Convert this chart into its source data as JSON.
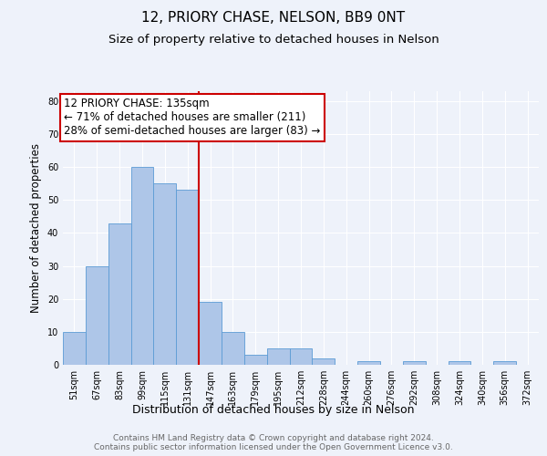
{
  "title": "12, PRIORY CHASE, NELSON, BB9 0NT",
  "subtitle": "Size of property relative to detached houses in Nelson",
  "xlabel": "Distribution of detached houses by size in Nelson",
  "ylabel": "Number of detached properties",
  "categories": [
    "51sqm",
    "67sqm",
    "83sqm",
    "99sqm",
    "115sqm",
    "131sqm",
    "147sqm",
    "163sqm",
    "179sqm",
    "195sqm",
    "212sqm",
    "228sqm",
    "244sqm",
    "260sqm",
    "276sqm",
    "292sqm",
    "308sqm",
    "324sqm",
    "340sqm",
    "356sqm",
    "372sqm"
  ],
  "values": [
    10,
    30,
    43,
    60,
    55,
    53,
    19,
    10,
    3,
    5,
    5,
    2,
    0,
    1,
    0,
    1,
    0,
    1,
    0,
    1,
    0
  ],
  "bar_color": "#aec6e8",
  "bar_edgecolor": "#5b9bd5",
  "bar_width": 1.0,
  "vline_x": 5.5,
  "vline_color": "#cc0000",
  "annotation_box_text": "12 PRIORY CHASE: 135sqm\n← 71% of detached houses are smaller (211)\n28% of semi-detached houses are larger (83) →",
  "ylim": [
    0,
    83
  ],
  "yticks": [
    0,
    10,
    20,
    30,
    40,
    50,
    60,
    70,
    80
  ],
  "footer_text": "Contains HM Land Registry data © Crown copyright and database right 2024.\nContains public sector information licensed under the Open Government Licence v3.0.",
  "background_color": "#eef2fa",
  "title_fontsize": 11,
  "subtitle_fontsize": 9.5,
  "xlabel_fontsize": 9,
  "ylabel_fontsize": 8.5,
  "tick_fontsize": 7,
  "annotation_fontsize": 8.5,
  "footer_fontsize": 6.5
}
